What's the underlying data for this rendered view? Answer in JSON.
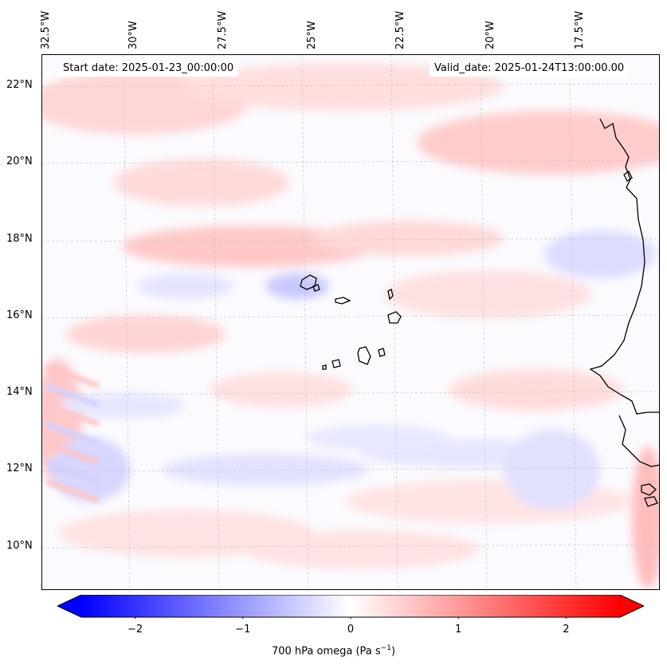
{
  "map": {
    "start_date": "Start date: 2025-01-23_00:00:00",
    "valid_date": "Valid_date: 2025-01-24T13:00:00.00",
    "lon_labels": [
      "32.5°W",
      "30°W",
      "27.5°W",
      "25°W",
      "22.5°W",
      "20°W",
      "17.5°W"
    ],
    "lat_labels": [
      "22°N",
      "20°N",
      "18°N",
      "16°N",
      "14°N",
      "12°N",
      "10°N"
    ],
    "field": "700 hPa omega",
    "region": "Cabo Verde islands and West African coast"
  },
  "colorbar": {
    "ticks": [
      "−2",
      "−1",
      "0",
      "1",
      "2"
    ],
    "tick_values": [
      -2,
      -1,
      0,
      1,
      2
    ],
    "range": [
      -2.5,
      2.5
    ],
    "label_main": "700 hPa omega (Pa s",
    "label_sup": "−1",
    "label_end": ")",
    "cmap_low": "#0000ff",
    "cmap_mid": "#ffffff",
    "cmap_high": "#ff0000"
  }
}
